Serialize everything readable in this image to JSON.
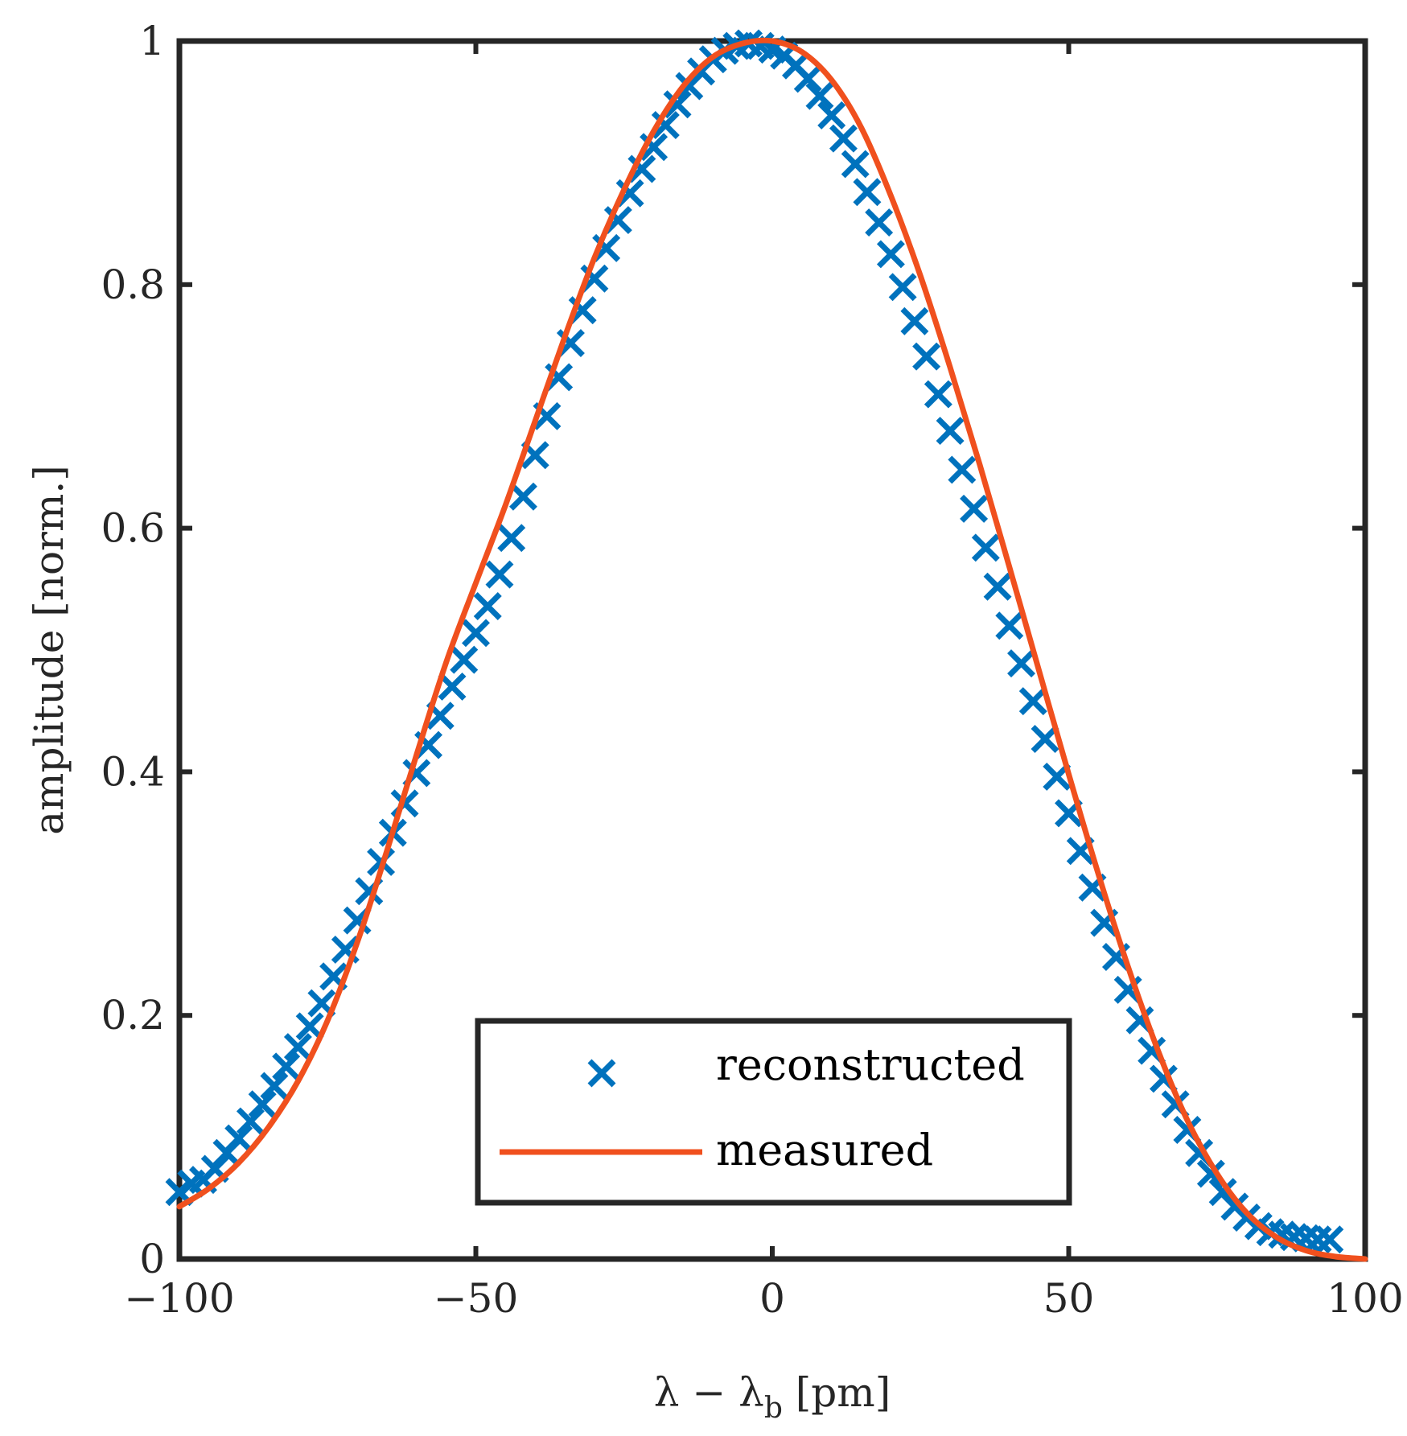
{
  "chart_data": {
    "type": "line",
    "title": "",
    "xlabel": "λ − λb [pm]",
    "xlabel_main": "λ − λ",
    "xlabel_sub": "b",
    "xlabel_unit": " [pm]",
    "ylabel": "amplitude [norm.]",
    "xlim": [
      -100,
      100
    ],
    "ylim": [
      0,
      1
    ],
    "xticks": [
      -100,
      -50,
      0,
      50,
      100
    ],
    "xtick_labels": [
      "−100",
      "−50",
      "0",
      "50",
      "100"
    ],
    "yticks": [
      0,
      0.2,
      0.4,
      0.6,
      0.8,
      1
    ],
    "ytick_labels": [
      "0",
      "0.2",
      "0.4",
      "0.6",
      "0.8",
      "1"
    ],
    "grid": false,
    "legend_position": "bottom-center",
    "series": [
      {
        "name": "reconstructed",
        "style": "markers-x",
        "color": "#0072BD",
        "x": [
          -100,
          -98,
          -96,
          -94,
          -92,
          -90,
          -88,
          -86,
          -84,
          -82,
          -80,
          -78,
          -76,
          -74,
          -72,
          -70,
          -68,
          -66,
          -64,
          -62,
          -60,
          -58,
          -56,
          -54,
          -52,
          -50,
          -48,
          -46,
          -44,
          -42,
          -40,
          -38,
          -36,
          -34,
          -32,
          -30,
          -28,
          -26,
          -24,
          -22,
          -20,
          -18,
          -16,
          -14,
          -12,
          -10,
          -8,
          -6,
          -4,
          -2,
          0,
          2,
          4,
          6,
          8,
          10,
          12,
          14,
          16,
          18,
          20,
          22,
          24,
          26,
          28,
          30,
          32,
          34,
          36,
          38,
          40,
          42,
          44,
          46,
          48,
          50,
          52,
          54,
          56,
          58,
          60,
          62,
          64,
          66,
          68,
          70,
          72,
          74,
          76,
          78,
          80,
          82,
          84,
          86,
          88,
          90,
          92,
          94
        ],
        "y": [
          0.055,
          0.062,
          0.065,
          0.074,
          0.087,
          0.099,
          0.113,
          0.127,
          0.142,
          0.158,
          0.174,
          0.191,
          0.21,
          0.232,
          0.254,
          0.278,
          0.302,
          0.326,
          0.35,
          0.374,
          0.399,
          0.422,
          0.446,
          0.47,
          0.492,
          0.514,
          0.536,
          0.562,
          0.592,
          0.626,
          0.66,
          0.692,
          0.724,
          0.752,
          0.779,
          0.805,
          0.83,
          0.853,
          0.875,
          0.895,
          0.913,
          0.931,
          0.948,
          0.963,
          0.975,
          0.985,
          0.992,
          0.996,
          0.998,
          0.996,
          0.993,
          0.988,
          0.98,
          0.969,
          0.955,
          0.939,
          0.92,
          0.899,
          0.876,
          0.851,
          0.825,
          0.798,
          0.77,
          0.741,
          0.71,
          0.68,
          0.648,
          0.616,
          0.584,
          0.552,
          0.52,
          0.489,
          0.458,
          0.427,
          0.396,
          0.366,
          0.335,
          0.305,
          0.276,
          0.248,
          0.221,
          0.196,
          0.171,
          0.148,
          0.127,
          0.106,
          0.087,
          0.07,
          0.055,
          0.043,
          0.034,
          0.027,
          0.022,
          0.02,
          0.018,
          0.017,
          0.016,
          0.016
        ]
      },
      {
        "name": "measured",
        "style": "line",
        "color": "#F0501E",
        "x": [
          -100,
          -95,
          -90,
          -85,
          -80,
          -75,
          -70,
          -65,
          -60,
          -55,
          -50,
          -45,
          -40,
          -35,
          -30,
          -25,
          -20,
          -15,
          -10,
          -5,
          0,
          5,
          10,
          15,
          20,
          25,
          30,
          35,
          40,
          45,
          50,
          55,
          60,
          65,
          70,
          75,
          80,
          85,
          90,
          95,
          100
        ],
        "y": [
          0.043,
          0.058,
          0.079,
          0.108,
          0.146,
          0.196,
          0.26,
          0.335,
          0.414,
          0.49,
          0.555,
          0.619,
          0.688,
          0.757,
          0.822,
          0.878,
          0.926,
          0.963,
          0.987,
          0.998,
          1.0,
          0.991,
          0.968,
          0.929,
          0.873,
          0.807,
          0.732,
          0.652,
          0.568,
          0.483,
          0.398,
          0.316,
          0.24,
          0.172,
          0.114,
          0.07,
          0.038,
          0.018,
          0.007,
          0.002,
          0.0
        ]
      }
    ]
  }
}
